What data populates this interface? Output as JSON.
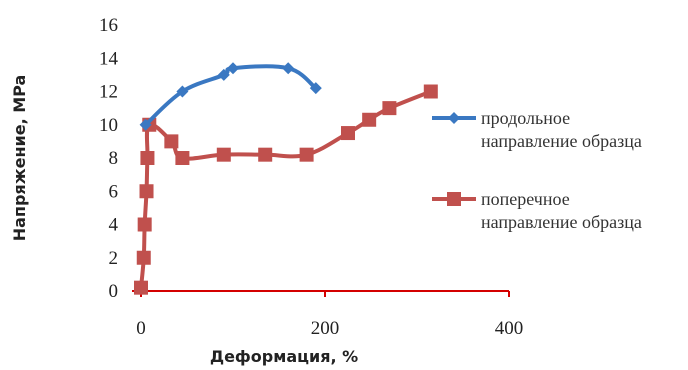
{
  "chart_data": {
    "type": "line",
    "title": "",
    "xlabel": "Деформация, %",
    "ylabel": "Напряжение, MPa",
    "xlim": [
      0,
      400
    ],
    "ylim": [
      0,
      16
    ],
    "xticks": [
      0,
      200,
      400
    ],
    "yticks": [
      0,
      2,
      4,
      6,
      8,
      10,
      12,
      14,
      16
    ],
    "grid": false,
    "legend_position": "right",
    "series": [
      {
        "name": "продольное направление образца",
        "legend_lines": [
          "продольное",
          "направление образца"
        ],
        "color": "#3a78c2",
        "marker": "diamond",
        "x": [
          5,
          45,
          90,
          100,
          160,
          190
        ],
        "y": [
          10,
          12,
          13,
          13.4,
          13.4,
          12.2
        ]
      },
      {
        "name": "поперечное направление образца",
        "legend_lines": [
          "поперечное",
          "направление образца"
        ],
        "color": "#c0504d",
        "marker": "square",
        "x": [
          0,
          3,
          4,
          6,
          7,
          9,
          33,
          45,
          90,
          135,
          180,
          225,
          248,
          270,
          315
        ],
        "y": [
          0.2,
          2,
          4,
          6,
          8,
          10,
          9,
          8,
          8.2,
          8.2,
          8.2,
          9.5,
          10.3,
          11,
          12
        ]
      }
    ]
  }
}
